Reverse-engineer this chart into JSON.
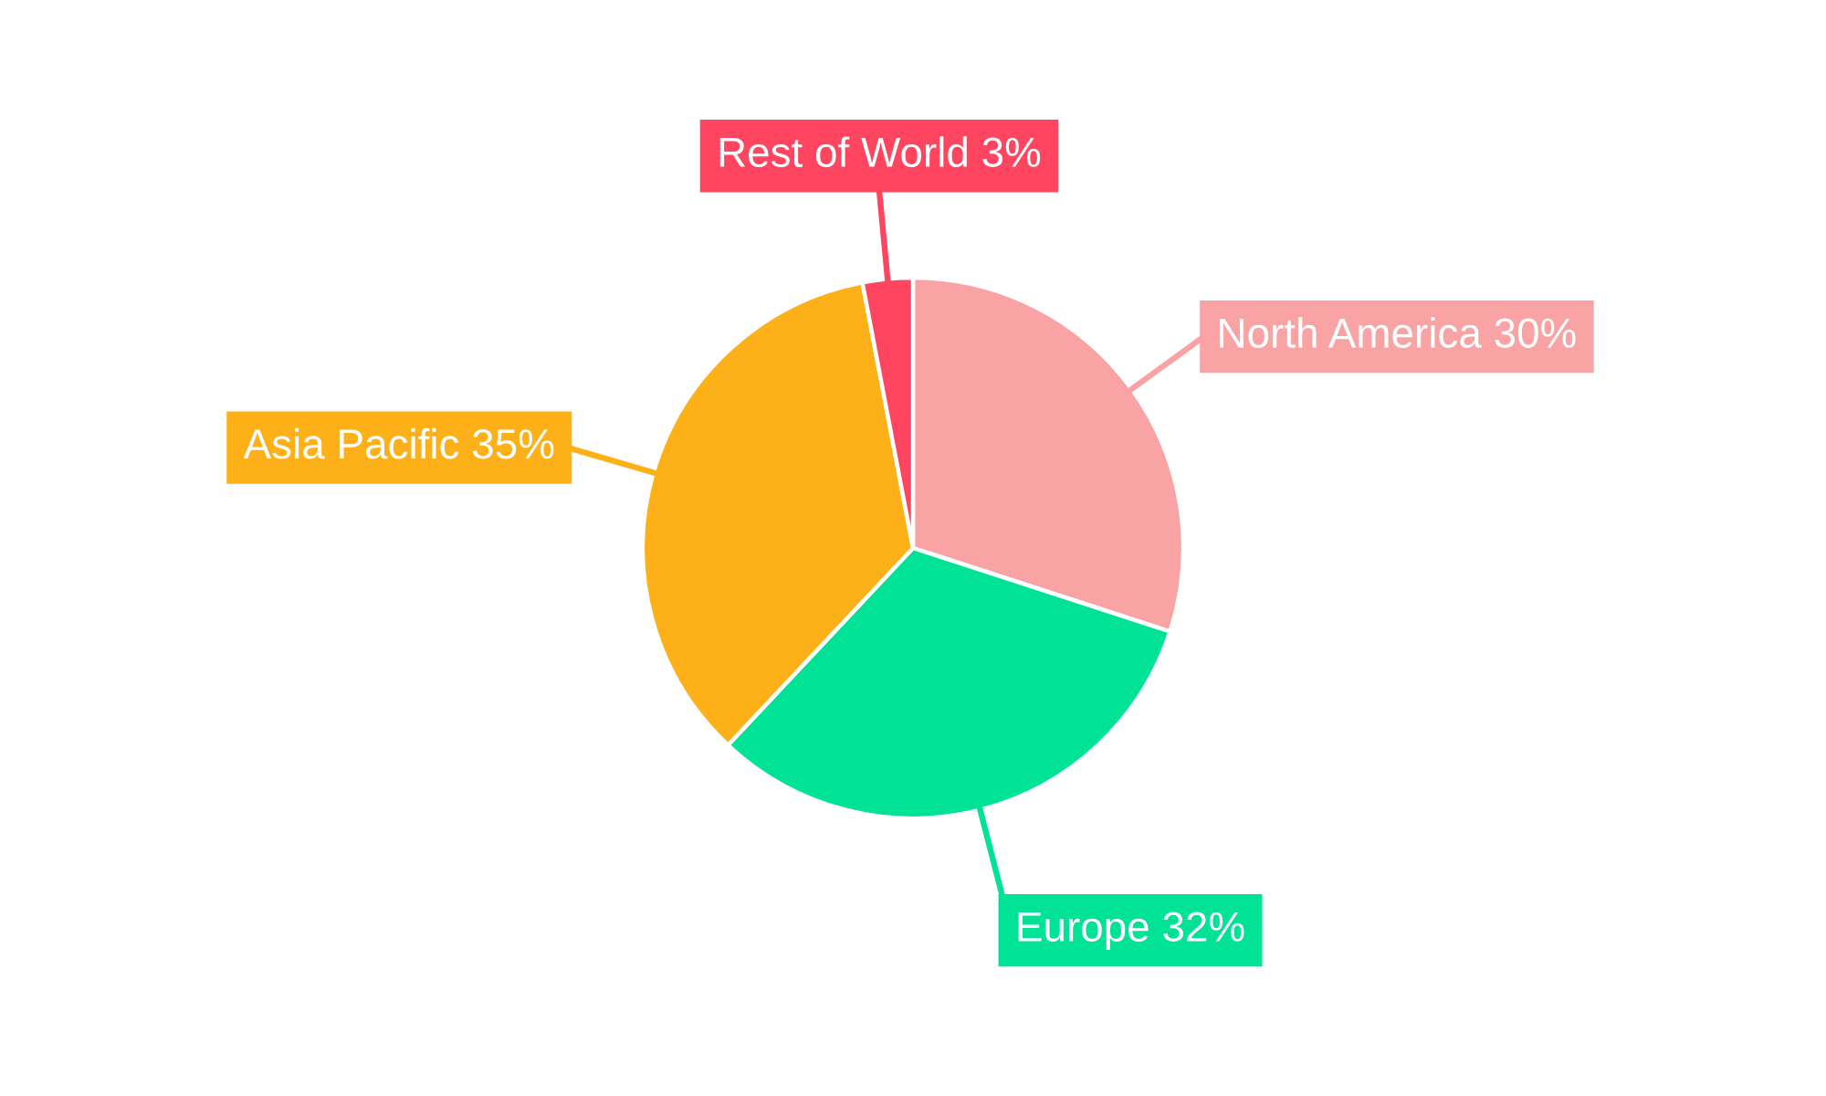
{
  "chart_data": {
    "type": "pie",
    "categories": [
      "North America",
      "Europe",
      "Asia Pacific",
      "Rest of World"
    ],
    "values": [
      30,
      32,
      35,
      3
    ],
    "colors": [
      "#f9a3a4",
      "#00e396",
      "#feb019",
      "#ff4560"
    ],
    "value_labels": [
      "30%",
      "32%",
      "35%",
      "3%"
    ]
  }
}
